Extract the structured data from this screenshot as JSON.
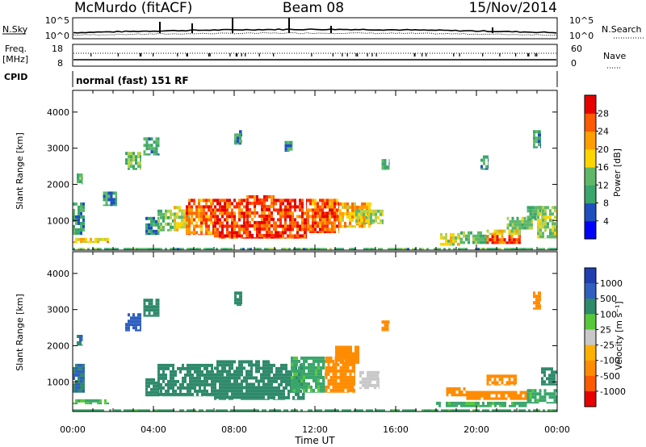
{
  "header": {
    "station": "McMurdo (fitACF)",
    "beam": "Beam 08",
    "date": "15/Nov/2014",
    "cpid_mode": "normal (fast) 151 RF"
  },
  "chart_data": [
    {
      "name": "noise-panel",
      "type": "line",
      "left_label": "N.Sky",
      "right_label": "N.Search",
      "left_ticks": [
        "10^5",
        "10^0"
      ],
      "right_ticks": [
        "10^5",
        "10^0"
      ],
      "series_style": {
        "N.Sky": "solid",
        "N.Search": "dotted"
      }
    },
    {
      "name": "freq-nave-panel",
      "type": "line",
      "left_label_1": "Freq.",
      "left_label_2": "[MHz]",
      "right_label": "Nave",
      "left_ticks": [
        "18",
        "8"
      ],
      "right_ticks": [
        "60",
        "0"
      ],
      "series_style": {
        "Freq.": "solid",
        "Nave": "dotted"
      }
    },
    {
      "name": "cpid-panel",
      "label": "CPID"
    },
    {
      "name": "power-panel",
      "type": "heatmap",
      "ylabel": "Slant Range [km]",
      "yticks": [
        1000,
        2000,
        3000,
        4000
      ],
      "ylim": [
        180,
        4600
      ],
      "colorbar": {
        "label": "Power [dB]",
        "range": [
          0,
          32
        ],
        "ticks": [
          "4",
          "8",
          "12",
          "16",
          "20",
          "24",
          "28"
        ],
        "colors": [
          "#0000ff",
          "#1f4fbf",
          "#3aa66b",
          "#5fb86a",
          "#b7d14a",
          "#ffd500",
          "#ff9e00",
          "#ff6a00",
          "#ff2a00",
          "#e60000"
        ]
      },
      "regions": [
        {
          "t": [
            0.0,
            1.8
          ],
          "r": [
            380,
            520
          ],
          "value": 18
        },
        {
          "t": [
            0.0,
            24.0
          ],
          "r": [
            180,
            240
          ],
          "value": 10
        },
        {
          "t": [
            0.0,
            0.6
          ],
          "r": [
            600,
            1500
          ],
          "value": 8
        },
        {
          "t": [
            0.2,
            0.5
          ],
          "r": [
            2000,
            2300
          ],
          "value": 10
        },
        {
          "t": [
            1.5,
            2.2
          ],
          "r": [
            1400,
            1800
          ],
          "value": 8
        },
        {
          "t": [
            2.6,
            3.4
          ],
          "r": [
            2400,
            2900
          ],
          "value": 11
        },
        {
          "t": [
            3.5,
            4.3
          ],
          "r": [
            2800,
            3300
          ],
          "value": 9
        },
        {
          "t": [
            3.6,
            4.3
          ],
          "r": [
            600,
            1100
          ],
          "value": 7
        },
        {
          "t": [
            4.2,
            5.0
          ],
          "r": [
            700,
            1300
          ],
          "value": 12
        },
        {
          "t": [
            5.0,
            5.8
          ],
          "r": [
            700,
            1400
          ],
          "value": 16
        },
        {
          "t": [
            5.6,
            7.0
          ],
          "r": [
            600,
            1600
          ],
          "value": 24
        },
        {
          "t": [
            7.0,
            8.6
          ],
          "r": [
            500,
            1600
          ],
          "value": 27
        },
        {
          "t": [
            8.6,
            10.0
          ],
          "r": [
            500,
            1700
          ],
          "value": 26
        },
        {
          "t": [
            10.0,
            11.6
          ],
          "r": [
            500,
            1600
          ],
          "value": 27
        },
        {
          "t": [
            11.6,
            13.2
          ],
          "r": [
            650,
            1600
          ],
          "value": 25
        },
        {
          "t": [
            13.2,
            14.8
          ],
          "r": [
            800,
            1500
          ],
          "value": 20
        },
        {
          "t": [
            14.0,
            15.4
          ],
          "r": [
            900,
            1300
          ],
          "value": 14
        },
        {
          "t": [
            8.0,
            8.4
          ],
          "r": [
            3100,
            3500
          ],
          "value": 9
        },
        {
          "t": [
            10.5,
            10.9
          ],
          "r": [
            2900,
            3200
          ],
          "value": 8
        },
        {
          "t": [
            15.3,
            15.7
          ],
          "r": [
            2400,
            2700
          ],
          "value": 9
        },
        {
          "t": [
            18.2,
            19.2
          ],
          "r": [
            300,
            650
          ],
          "value": 15
        },
        {
          "t": [
            19.2,
            20.5
          ],
          "r": [
            350,
            700
          ],
          "value": 10
        },
        {
          "t": [
            20.5,
            22.2
          ],
          "r": [
            350,
            600
          ],
          "value": 26
        },
        {
          "t": [
            20.5,
            22.2
          ],
          "r": [
            600,
            750
          ],
          "value": 17
        },
        {
          "t": [
            21.5,
            22.8
          ],
          "r": [
            750,
            1100
          ],
          "value": 12
        },
        {
          "t": [
            22.5,
            23.3
          ],
          "r": [
            1000,
            1400
          ],
          "value": 9
        },
        {
          "t": [
            23.0,
            24.0
          ],
          "r": [
            500,
            1400
          ],
          "value": 14
        },
        {
          "t": [
            22.8,
            23.2
          ],
          "r": [
            3000,
            3500
          ],
          "value": 9
        },
        {
          "t": [
            20.2,
            20.6
          ],
          "r": [
            2400,
            2800
          ],
          "value": 8
        }
      ]
    },
    {
      "name": "velocity-panel",
      "type": "heatmap",
      "ylabel": "Slant Range [km]",
      "yticks": [
        1000,
        2000,
        3000,
        4000
      ],
      "ylim": [
        180,
        4600
      ],
      "xlabel": "Time UT",
      "xticks": [
        "00:00",
        "04:00",
        "08:00",
        "12:00",
        "16:00",
        "20:00",
        "00:00"
      ],
      "xlim": [
        0,
        24
      ],
      "colorbar": {
        "label": "Velocity [m s⁻¹]",
        "ticks": [
          "1000",
          "500",
          "100",
          "25",
          "-25",
          "-100",
          "-500",
          "-1000"
        ],
        "colors": [
          "#1f3fb0",
          "#2f5fbf",
          "#2e8a6a",
          "#3aa66b",
          "#57c83a",
          "#c8c8c8",
          "#ffb000",
          "#ff8c00",
          "#ff5a00",
          "#e60000"
        ]
      },
      "regions": [
        {
          "t": [
            0.0,
            1.8
          ],
          "r": [
            380,
            520
          ],
          "value": 50
        },
        {
          "t": [
            0.0,
            24.0
          ],
          "r": [
            180,
            240
          ],
          "value": 60
        },
        {
          "t": [
            0.0,
            0.6
          ],
          "r": [
            700,
            1500
          ],
          "value": 500
        },
        {
          "t": [
            0.2,
            0.5
          ],
          "r": [
            2000,
            2300
          ],
          "value": 500
        },
        {
          "t": [
            2.6,
            3.4
          ],
          "r": [
            2400,
            2900
          ],
          "value": 600
        },
        {
          "t": [
            3.5,
            4.3
          ],
          "r": [
            2800,
            3300
          ],
          "value": 400
        },
        {
          "t": [
            3.6,
            4.3
          ],
          "r": [
            600,
            1100
          ],
          "value": 300
        },
        {
          "t": [
            4.2,
            7.0
          ],
          "r": [
            600,
            1500
          ],
          "value": 200
        },
        {
          "t": [
            7.0,
            9.8
          ],
          "r": [
            500,
            1600
          ],
          "value": 180
        },
        {
          "t": [
            9.8,
            11.5
          ],
          "r": [
            500,
            1500
          ],
          "value": 150
        },
        {
          "t": [
            10.8,
            12.5
          ],
          "r": [
            700,
            1700
          ],
          "value": 60
        },
        {
          "t": [
            12.5,
            14.0
          ],
          "r": [
            700,
            1700
          ],
          "value": -250
        },
        {
          "t": [
            13.0,
            14.2
          ],
          "r": [
            1500,
            2000
          ],
          "value": -300
        },
        {
          "t": [
            14.2,
            15.2
          ],
          "r": [
            800,
            1300
          ],
          "value": 0
        },
        {
          "t": [
            8.0,
            8.4
          ],
          "r": [
            3100,
            3500
          ],
          "value": 400
        },
        {
          "t": [
            15.3,
            15.7
          ],
          "r": [
            2400,
            2700
          ],
          "value": -300
        },
        {
          "t": [
            18.5,
            19.5
          ],
          "r": [
            600,
            850
          ],
          "value": -300
        },
        {
          "t": [
            19.5,
            22.6
          ],
          "r": [
            500,
            750
          ],
          "value": -400
        },
        {
          "t": [
            18.0,
            22.5
          ],
          "r": [
            300,
            450
          ],
          "value": 60
        },
        {
          "t": [
            20.5,
            22.0
          ],
          "r": [
            900,
            1200
          ],
          "value": -200
        },
        {
          "t": [
            22.5,
            24.0
          ],
          "r": [
            400,
            800
          ],
          "value": 60
        },
        {
          "t": [
            23.2,
            24.0
          ],
          "r": [
            900,
            1400
          ],
          "value": 200
        },
        {
          "t": [
            22.8,
            23.2
          ],
          "r": [
            3000,
            3500
          ],
          "value": -300
        }
      ]
    }
  ]
}
